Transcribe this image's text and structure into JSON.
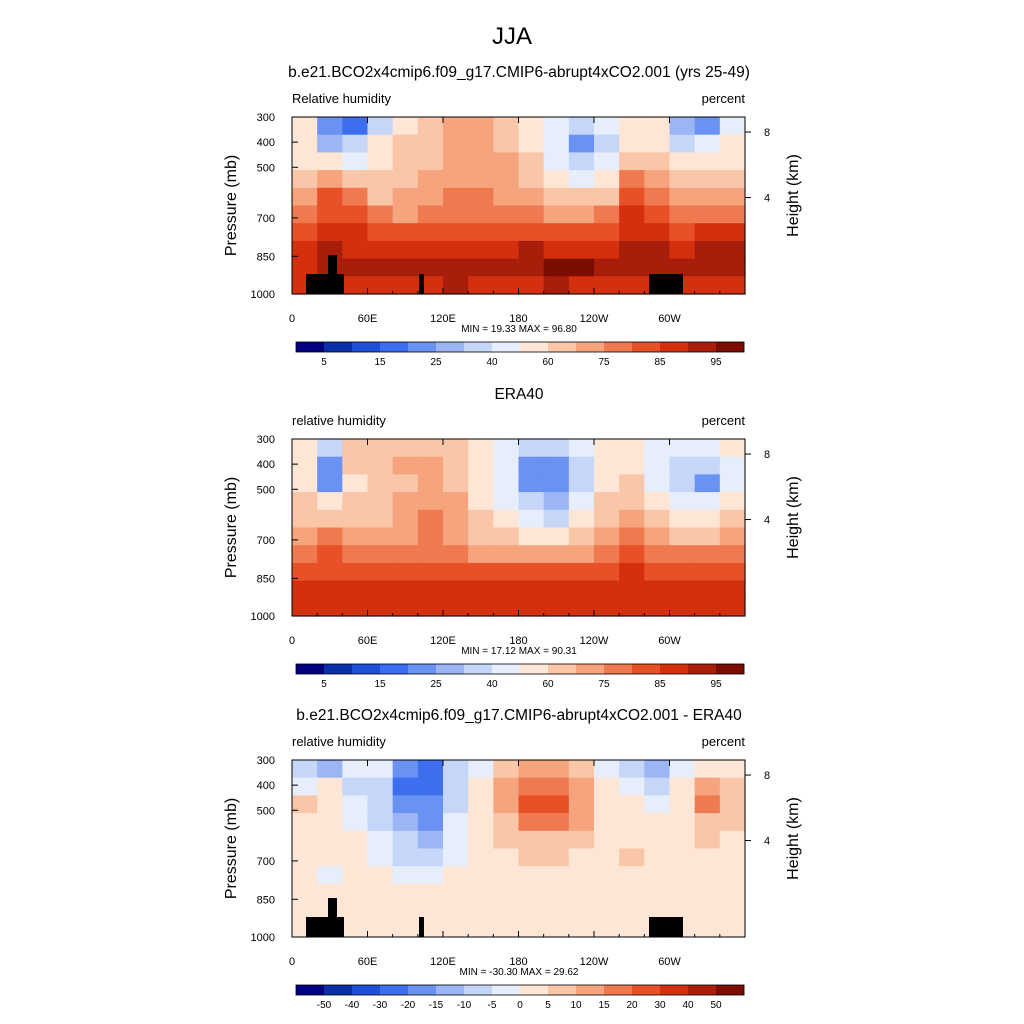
{
  "figure": {
    "title": "JJA"
  },
  "chart_data": [
    {
      "type": "heatmap",
      "title": "b.e21.BCO2x4cmip6.f09_g17.CMIP6-abrupt4xCO2.001 (yrs 25-49)",
      "variable_label": "Relative humidity",
      "units_label": "percent",
      "ylabel": "Pressure (mb)",
      "ylabel_right": "Height (km)",
      "y_ticks": [
        "300",
        "400",
        "500",
        "700",
        "850",
        "1000"
      ],
      "y_ticks_right": [
        "8",
        "4"
      ],
      "x_ticks": [
        "0",
        "60E",
        "120E",
        "180",
        "120W",
        "60W"
      ],
      "stats": "MIN =  19.33  MAX =  96.80",
      "colorbar_labels": [
        "5",
        "15",
        "25",
        "40",
        "60",
        "75",
        "85",
        "95"
      ],
      "palette": "sequential",
      "range": [
        19.33,
        96.8
      ],
      "topography": true,
      "values": [
        [
          50,
          25,
          20,
          40,
          55,
          62,
          64,
          64,
          62,
          55,
          45,
          40,
          45,
          52,
          55,
          35,
          28,
          45
        ],
        [
          52,
          35,
          40,
          55,
          58,
          60,
          64,
          66,
          62,
          55,
          45,
          30,
          40,
          55,
          52,
          38,
          45,
          50
        ],
        [
          55,
          50,
          48,
          55,
          60,
          62,
          66,
          66,
          64,
          58,
          48,
          38,
          48,
          60,
          58,
          50,
          52,
          55
        ],
        [
          58,
          65,
          60,
          58,
          62,
          64,
          68,
          68,
          66,
          62,
          55,
          48,
          55,
          70,
          64,
          58,
          58,
          60
        ],
        [
          65,
          75,
          72,
          62,
          64,
          66,
          70,
          70,
          68,
          66,
          62,
          58,
          62,
          78,
          70,
          64,
          64,
          66
        ],
        [
          72,
          80,
          78,
          70,
          68,
          70,
          72,
          72,
          70,
          70,
          68,
          66,
          70,
          82,
          75,
          70,
          70,
          72
        ],
        [
          80,
          85,
          82,
          80,
          80,
          80,
          80,
          80,
          80,
          80,
          78,
          78,
          80,
          85,
          82,
          80,
          82,
          82
        ],
        [
          85,
          88,
          86,
          86,
          86,
          86,
          86,
          86,
          86,
          88,
          86,
          86,
          86,
          88,
          88,
          86,
          88,
          88
        ],
        [
          86,
          90,
          90,
          90,
          88,
          90,
          92,
          90,
          90,
          92,
          94,
          94,
          92,
          90,
          88,
          88,
          90,
          90
        ],
        [
          84,
          86,
          86,
          86,
          86,
          86,
          88,
          86,
          86,
          86,
          88,
          86,
          86,
          86,
          84,
          84,
          86,
          86
        ]
      ]
    },
    {
      "type": "heatmap",
      "title": "ERA40",
      "variable_label": "relative humidity",
      "units_label": "percent",
      "ylabel": "Pressure (mb)",
      "ylabel_right": "Height (km)",
      "y_ticks": [
        "300",
        "400",
        "500",
        "700",
        "850",
        "1000"
      ],
      "y_ticks_right": [
        "8",
        "4"
      ],
      "x_ticks": [
        "0",
        "60E",
        "120E",
        "180",
        "120W",
        "60W"
      ],
      "stats": "MIN =  17.12  MAX =  90.31",
      "colorbar_labels": [
        "5",
        "15",
        "25",
        "40",
        "60",
        "75",
        "85",
        "95"
      ],
      "palette": "sequential",
      "range": [
        17.12,
        90.31
      ],
      "topography": false,
      "values": [
        [
          52,
          40,
          58,
          60,
          62,
          62,
          60,
          55,
          48,
          40,
          40,
          48,
          55,
          55,
          45,
          45,
          48,
          50
        ],
        [
          55,
          30,
          58,
          62,
          64,
          64,
          62,
          55,
          45,
          30,
          25,
          40,
          55,
          55,
          45,
          40,
          38,
          48
        ],
        [
          55,
          30,
          56,
          60,
          62,
          64,
          62,
          55,
          45,
          28,
          25,
          40,
          55,
          58,
          48,
          40,
          30,
          45
        ],
        [
          60,
          50,
          60,
          62,
          64,
          68,
          64,
          56,
          48,
          38,
          35,
          45,
          58,
          62,
          54,
          48,
          45,
          52
        ],
        [
          62,
          60,
          62,
          62,
          64,
          70,
          64,
          58,
          52,
          45,
          42,
          50,
          60,
          68,
          60,
          55,
          54,
          58
        ],
        [
          66,
          72,
          66,
          66,
          66,
          72,
          66,
          62,
          58,
          55,
          52,
          58,
          64,
          74,
          66,
          62,
          62,
          64
        ],
        [
          72,
          80,
          72,
          70,
          70,
          74,
          70,
          68,
          66,
          64,
          64,
          66,
          70,
          80,
          74,
          70,
          70,
          72
        ],
        [
          76,
          80,
          78,
          78,
          76,
          78,
          76,
          75,
          75,
          75,
          75,
          76,
          78,
          82,
          80,
          78,
          78,
          78
        ],
        [
          82,
          84,
          84,
          84,
          84,
          86,
          84,
          82,
          82,
          82,
          84,
          84,
          84,
          86,
          84,
          84,
          84,
          84
        ],
        [
          82,
          82,
          82,
          82,
          82,
          84,
          82,
          82,
          82,
          82,
          84,
          84,
          84,
          84,
          82,
          82,
          82,
          82
        ]
      ]
    },
    {
      "type": "heatmap",
      "title": "b.e21.BCO2x4cmip6.f09_g17.CMIP6-abrupt4xCO2.001 - ERA40",
      "variable_label": "relative humidity",
      "units_label": "percent",
      "ylabel": "Pressure (mb)",
      "ylabel_right": "Height (km)",
      "y_ticks": [
        "300",
        "400",
        "500",
        "700",
        "850",
        "1000"
      ],
      "y_ticks_right": [
        "8",
        "4"
      ],
      "x_ticks": [
        "0",
        "60E",
        "120E",
        "180",
        "120W",
        "60W"
      ],
      "stats": "MIN = -30.30  MAX =  29.62",
      "colorbar_labels": [
        "-50",
        "-40",
        "-30",
        "-20",
        "-15",
        "-10",
        "-5",
        "0",
        "5",
        "10",
        "15",
        "20",
        "30",
        "40",
        "50"
      ],
      "palette": "diverging",
      "range": [
        -30.3,
        29.62
      ],
      "topography": true,
      "values": [
        [
          -10,
          -15,
          -5,
          -5,
          -25,
          -30,
          -10,
          -5,
          10,
          15,
          15,
          10,
          -5,
          -10,
          -15,
          -5,
          5,
          5
        ],
        [
          -5,
          5,
          -8,
          -10,
          -28,
          -30,
          -10,
          0,
          15,
          22,
          22,
          15,
          5,
          -5,
          -10,
          5,
          15,
          10
        ],
        [
          10,
          5,
          -5,
          -10,
          -22,
          -25,
          -8,
          0,
          15,
          25,
          25,
          18,
          5,
          2,
          -5,
          5,
          20,
          12
        ],
        [
          5,
          5,
          -5,
          -8,
          -18,
          -20,
          -5,
          5,
          12,
          20,
          20,
          15,
          5,
          5,
          0,
          5,
          12,
          8
        ],
        [
          5,
          5,
          0,
          -5,
          -12,
          -15,
          -5,
          5,
          10,
          12,
          12,
          10,
          5,
          5,
          5,
          5,
          8,
          5
        ],
        [
          5,
          0,
          0,
          -3,
          -8,
          -10,
          -5,
          5,
          5,
          8,
          8,
          5,
          5,
          8,
          5,
          5,
          5,
          5
        ],
        [
          5,
          -5,
          2,
          0,
          -5,
          -5,
          0,
          2,
          2,
          3,
          2,
          2,
          2,
          5,
          5,
          5,
          5,
          5
        ],
        [
          2,
          0,
          2,
          2,
          0,
          0,
          2,
          2,
          2,
          2,
          2,
          2,
          2,
          5,
          5,
          5,
          5,
          5
        ],
        [
          2,
          0,
          2,
          2,
          2,
          2,
          2,
          2,
          2,
          2,
          2,
          2,
          2,
          2,
          2,
          2,
          2,
          2
        ],
        [
          0,
          0,
          2,
          2,
          2,
          2,
          2,
          2,
          2,
          2,
          2,
          2,
          2,
          2,
          2,
          2,
          2,
          2
        ]
      ]
    }
  ],
  "colors": {
    "sequential": [
      "#000080",
      "#0a2fa8",
      "#1f4fd8",
      "#3d6ef0",
      "#6a92f2",
      "#9bb5f5",
      "#c6d6f8",
      "#e6eefb",
      "#fde6d6",
      "#f9c6a8",
      "#f5a47e",
      "#f07a50",
      "#e85028",
      "#d43010",
      "#a81e0a",
      "#7a0c00"
    ],
    "diverging": [
      "#000080",
      "#0a2fa8",
      "#1f4fd8",
      "#3d6ef0",
      "#6a92f2",
      "#9bb5f5",
      "#c6d6f8",
      "#e6eefb",
      "#fde6d6",
      "#f9c6a8",
      "#f5a47e",
      "#f07a50",
      "#e85028",
      "#d43010",
      "#a81e0a",
      "#7a0c00"
    ]
  }
}
